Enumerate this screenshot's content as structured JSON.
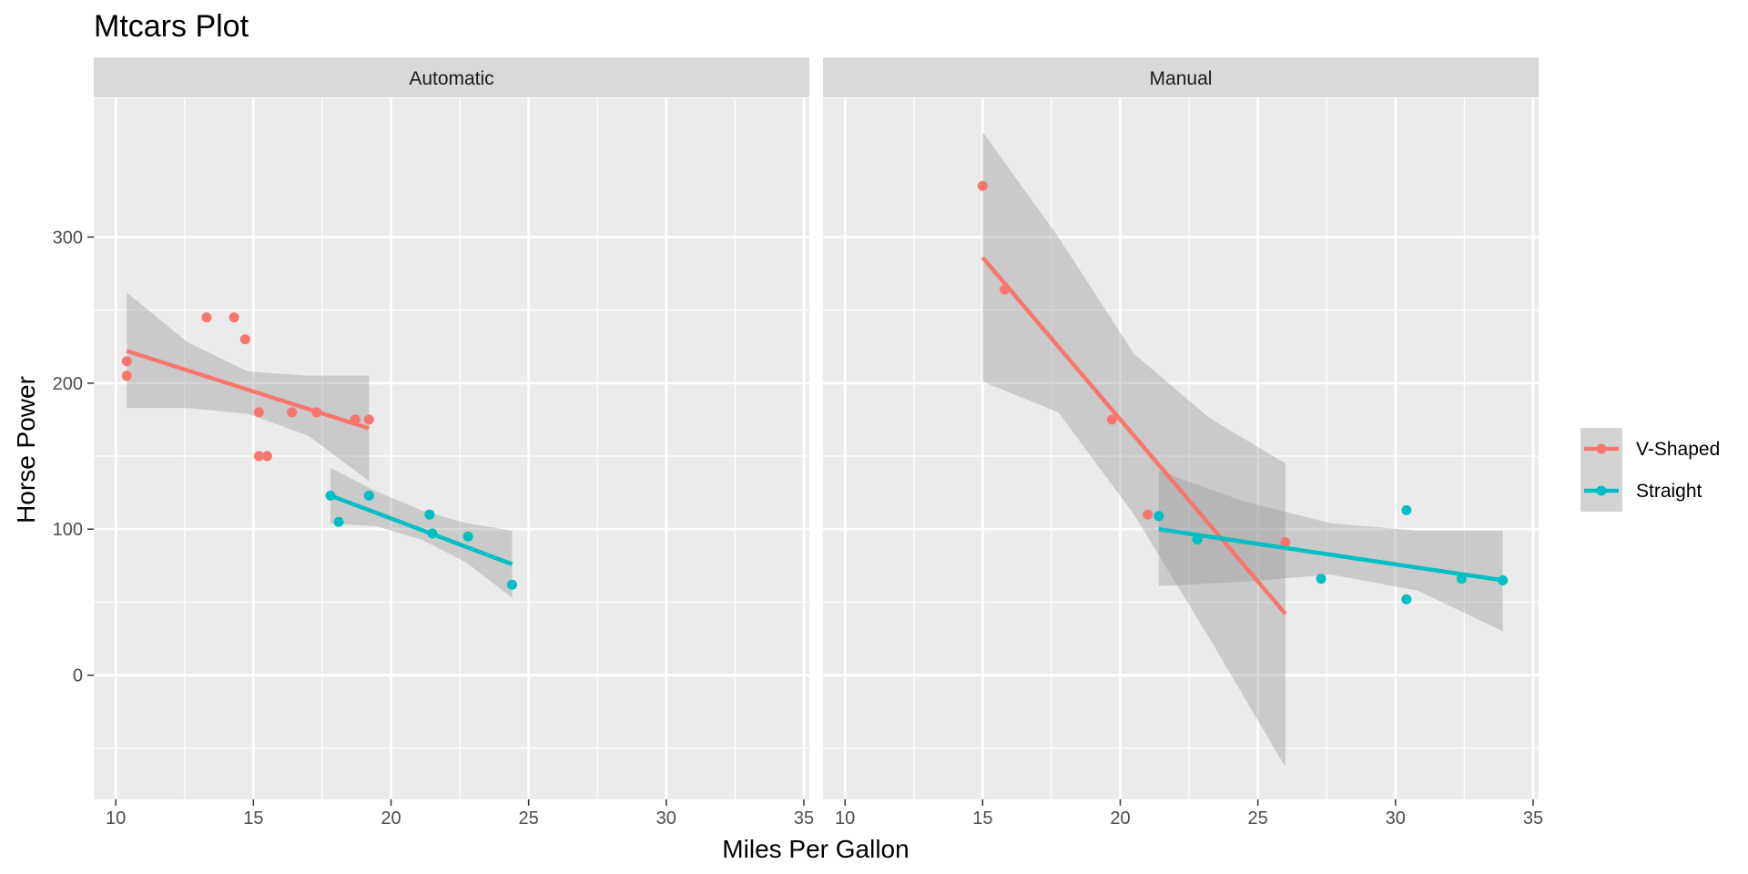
{
  "chart_data": {
    "type": "scatter",
    "title": "Mtcars Plot",
    "xlabel": "Miles Per Gallon",
    "ylabel": "Horse Power",
    "xlim": [
      9.2,
      35.2
    ],
    "ylim": [
      -85,
      395
    ],
    "x_ticks": [
      10,
      15,
      20,
      25,
      30,
      35
    ],
    "x_tick_labels": [
      "10",
      "15",
      "20",
      "25",
      "30",
      "35"
    ],
    "y_ticks": [
      0,
      100,
      200,
      300
    ],
    "y_tick_labels": [
      "0",
      "100",
      "200",
      "300"
    ],
    "grid": true,
    "legend_position": "right",
    "colors": {
      "v_shaped": "#F8766D",
      "straight": "#00BFC4",
      "band": "#999999"
    },
    "legend": [
      {
        "key": "v_shaped",
        "label": "V-Shaped"
      },
      {
        "key": "straight",
        "label": "Straight"
      }
    ],
    "panels": [
      {
        "label": "Automatic",
        "series": [
          {
            "key": "v_shaped",
            "points": [
              [
                10.4,
                205
              ],
              [
                10.4,
                215
              ],
              [
                13.3,
                245
              ],
              [
                14.3,
                245
              ],
              [
                14.7,
                230
              ],
              [
                15.2,
                180
              ],
              [
                15.2,
                150
              ],
              [
                15.5,
                150
              ],
              [
                16.4,
                180
              ],
              [
                17.3,
                180
              ],
              [
                18.7,
                175
              ],
              [
                19.2,
                175
              ]
            ],
            "fit": {
              "x": [
                10.4,
                19.2
              ],
              "y": [
                222,
                169
              ]
            },
            "band": {
              "x": [
                10.4,
                12.6,
                14.8,
                17.0,
                19.2
              ],
              "upper": [
                262,
                228,
                208,
                205,
                205
              ],
              "lower": [
                183,
                183,
                179,
                164,
                133
              ]
            }
          },
          {
            "key": "straight",
            "points": [
              [
                17.8,
                123
              ],
              [
                18.1,
                105
              ],
              [
                19.2,
                123
              ],
              [
                21.4,
                110
              ],
              [
                21.5,
                97
              ],
              [
                22.8,
                95
              ],
              [
                24.4,
                62
              ]
            ],
            "fit": {
              "x": [
                17.8,
                24.4
              ],
              "y": [
                123,
                76
              ]
            },
            "band": {
              "x": [
                17.8,
                19.45,
                21.1,
                22.75,
                24.4
              ],
              "upper": [
                142,
                126,
                113,
                104,
                99
              ],
              "lower": [
                104,
                102,
                93,
                77,
                53
              ]
            }
          }
        ]
      },
      {
        "label": "Manual",
        "series": [
          {
            "key": "v_shaped",
            "points": [
              [
                15.0,
                335
              ],
              [
                15.8,
                264
              ],
              [
                19.7,
                175
              ],
              [
                21.0,
                110
              ],
              [
                26.0,
                91
              ]
            ],
            "fit": {
              "x": [
                15.0,
                26.0
              ],
              "y": [
                286,
                42
              ]
            },
            "band": {
              "x": [
                15.0,
                17.75,
                20.5,
                23.25,
                26.0
              ],
              "upper": [
                372,
                300,
                220,
                176,
                145
              ],
              "lower": [
                201,
                180,
                110,
                25,
                -63
              ]
            }
          },
          {
            "key": "straight",
            "points": [
              [
                21.4,
                109
              ],
              [
                22.8,
                93
              ],
              [
                27.3,
                66
              ],
              [
                30.4,
                113
              ],
              [
                30.4,
                52
              ],
              [
                32.4,
                66
              ],
              [
                33.9,
                65
              ]
            ],
            "fit": {
              "x": [
                21.4,
                33.9
              ],
              "y": [
                100,
                65
              ]
            },
            "band": {
              "x": [
                21.4,
                24.5,
                27.65,
                30.8,
                33.9
              ],
              "upper": [
                140,
                119,
                104,
                99,
                99
              ],
              "lower": [
                61,
                64,
                69,
                58,
                30
              ]
            }
          }
        ]
      }
    ]
  }
}
